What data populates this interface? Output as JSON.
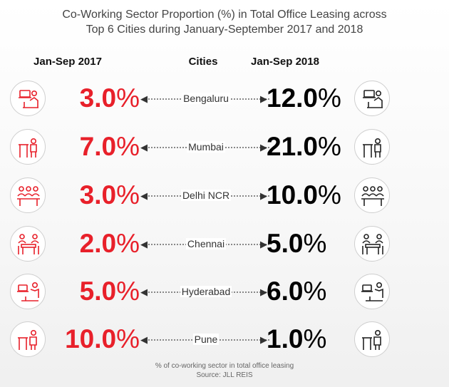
{
  "chart_data": {
    "type": "table",
    "title": "Co-Working Sector Proportion (%) in Total Office Leasing across Top 6 Cities during January-September 2017 and 2018",
    "title_line1": "Co-Working Sector Proportion (%) in Total Office Leasing across",
    "title_line2": "Top 6 Cities during January-September 2017 and 2018",
    "column_headers": {
      "left": "Jan-Sep 2017",
      "middle": "Cities",
      "right": "Jan-Sep 2018"
    },
    "categories": [
      "Bengaluru",
      "Mumbai",
      "Delhi NCR",
      "Chennai",
      "Hyderabad",
      "Pune"
    ],
    "series": [
      {
        "name": "Jan-Sep 2017",
        "values": [
          3.0,
          7.0,
          3.0,
          2.0,
          5.0,
          10.0
        ]
      },
      {
        "name": "Jan-Sep 2018",
        "values": [
          12.0,
          21.0,
          10.0,
          5.0,
          6.0,
          1.0
        ]
      }
    ],
    "value_labels_2017": [
      "3.0",
      "7.0",
      "3.0",
      "2.0",
      "5.0",
      "10.0"
    ],
    "value_labels_2018": [
      "12.0",
      "21.0",
      "10.0",
      "5.0",
      "6.0",
      "1.0"
    ],
    "unit_symbol": "%",
    "colors": {
      "2017": "#e8202a",
      "2018": "#000000",
      "icon_left": "#e8202a",
      "icon_right": "#222222"
    },
    "footnote": "% of co-working sector in total office leasing",
    "source": "Source: JLL REIS"
  }
}
